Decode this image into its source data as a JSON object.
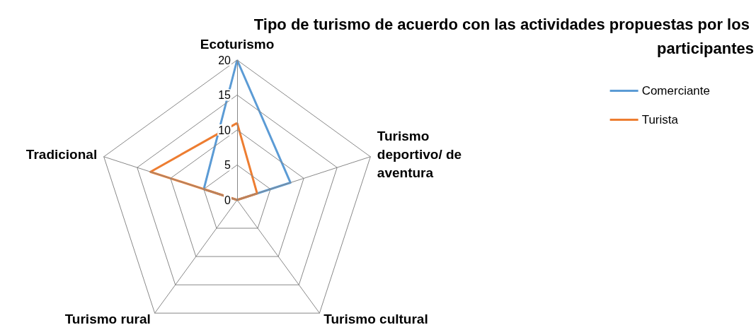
{
  "chart_data": {
    "type": "radar",
    "title": "Tipo de turismo de acuerdo con las actividades propuestas por los participantes",
    "categories": [
      "Ecoturismo",
      "Turismo deportivo/ de aventura",
      "Turismo cultural",
      "Turismo rural",
      "Tradicional"
    ],
    "series": [
      {
        "name": "Comerciante",
        "color": "#5b9bd5",
        "values": [
          20,
          8,
          0,
          0,
          5
        ]
      },
      {
        "name": "Turista",
        "color": "#ed7d31",
        "values": [
          11,
          3,
          0,
          0,
          13
        ]
      }
    ],
    "ylim": [
      0,
      20
    ],
    "yticks": [
      0,
      5,
      10,
      15,
      20
    ],
    "grid": true,
    "legend": "right",
    "marker": "none"
  }
}
